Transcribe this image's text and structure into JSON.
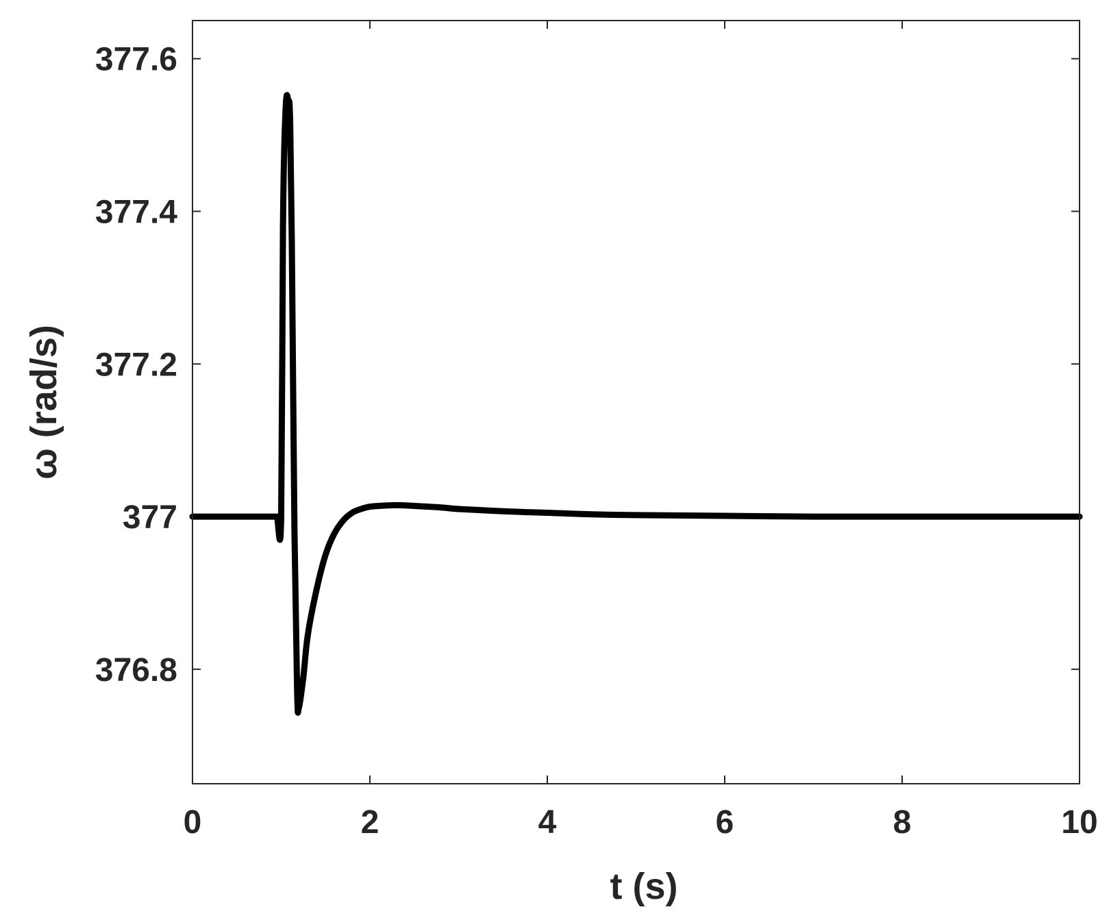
{
  "chart_data": {
    "type": "line",
    "title": "",
    "xlabel": "t (s)",
    "ylabel": "ω (rad/s)",
    "xlim": [
      0,
      10
    ],
    "ylim": [
      376.65,
      377.65
    ],
    "xticks": [
      0,
      2,
      4,
      6,
      8,
      10
    ],
    "xtick_labels": [
      "0",
      "2",
      "4",
      "6",
      "8",
      "10"
    ],
    "yticks": [
      376.8,
      377,
      377.2,
      377.4,
      377.6
    ],
    "ytick_labels": [
      "376.8",
      "377",
      "377.2",
      "377.4",
      "377.6"
    ],
    "grid": false,
    "legend": "none",
    "line_color": "#000000",
    "series": [
      {
        "x": [
          0,
          0.9,
          0.95,
          1.0,
          1.02,
          1.05,
          1.08,
          1.1,
          1.12,
          1.15,
          1.18,
          1.2,
          1.25,
          1.3,
          1.4,
          1.5,
          1.6,
          1.7,
          1.8,
          1.9,
          2.0,
          2.1,
          2.3,
          2.5,
          2.8,
          3.0,
          3.5,
          4.0,
          4.5,
          5.0,
          6.0,
          7.0,
          8.0,
          9.0,
          10.0
        ],
        "y": [
          377.0,
          377.0,
          377.0,
          377.0,
          377.38,
          377.535,
          377.545,
          377.52,
          377.36,
          376.98,
          376.77,
          376.75,
          376.79,
          376.845,
          376.905,
          376.95,
          376.978,
          376.995,
          377.005,
          377.01,
          377.013,
          377.014,
          377.015,
          377.014,
          377.012,
          377.01,
          377.007,
          377.005,
          377.003,
          377.002,
          377.001,
          377.0,
          377.0,
          377.0,
          377.0
        ]
      }
    ]
  }
}
